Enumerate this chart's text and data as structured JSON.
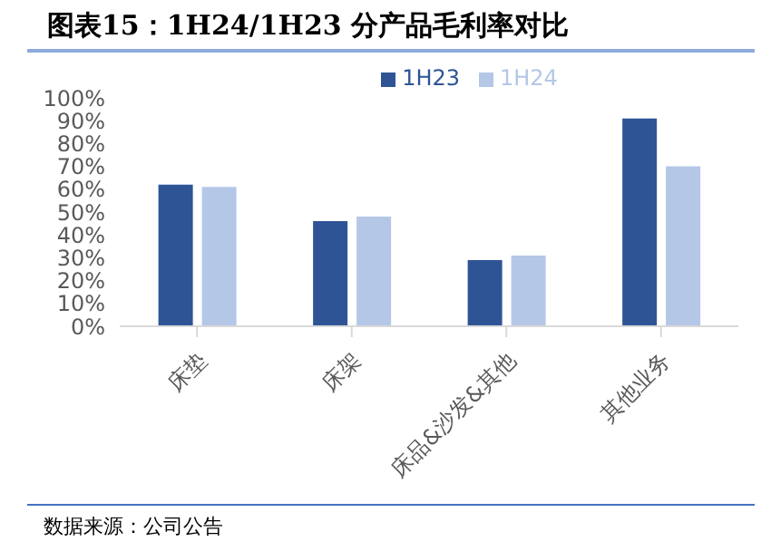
{
  "chart_data": {
    "type": "bar",
    "title": "图表15：1H24/1H23 分产品毛利率对比",
    "categories": [
      "床垫",
      "床架",
      "床品&沙发&其他",
      "其他业务"
    ],
    "series": [
      {
        "name": "1H23",
        "color": "#2e5496",
        "values": [
          62,
          46,
          29,
          91
        ]
      },
      {
        "name": "1H24",
        "color": "#b4c7e7",
        "values": [
          61,
          48,
          31,
          70
        ]
      }
    ],
    "ylim": [
      0,
      100
    ],
    "yticks": [
      {
        "value": 0,
        "label": "0%"
      },
      {
        "value": 10,
        "label": "10%"
      },
      {
        "value": 20,
        "label": "20%"
      },
      {
        "value": 30,
        "label": "30%"
      },
      {
        "value": 40,
        "label": "40%"
      },
      {
        "value": 50,
        "label": "50%"
      },
      {
        "value": 60,
        "label": "60%"
      },
      {
        "value": 70,
        "label": "70%"
      },
      {
        "value": 80,
        "label": "80%"
      },
      {
        "value": 90,
        "label": "90%"
      },
      {
        "value": 100,
        "label": "100%"
      }
    ],
    "grid": false,
    "legend": "top",
    "annotations": [
      "数据来源：公司公告"
    ]
  }
}
